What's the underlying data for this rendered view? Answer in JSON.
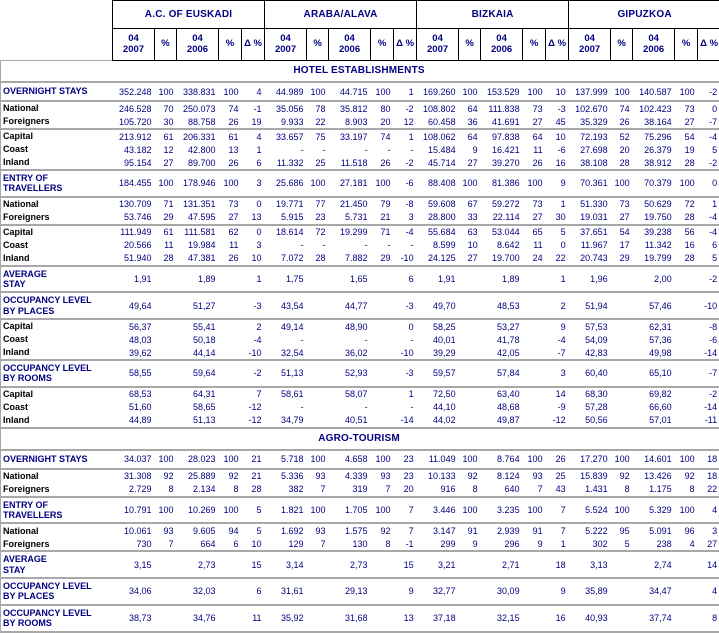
{
  "chart_data": {
    "type": "table",
    "column_groups": [
      "A.C. OF EUSKADI",
      "ARABA/ALAVA",
      "BIZKAIA",
      "GIPUZKOA"
    ],
    "sub_columns": [
      "04\n2007",
      "%",
      "04\n2006",
      "%",
      "Δ %"
    ],
    "colors": {
      "navy_text": "#000080",
      "label_text": "#000000",
      "grid_line": "#a8a8a8",
      "header_border": "#000000"
    },
    "sections": [
      {
        "title": "HOTEL ESTABLISHMENTS",
        "rows": [
          {
            "label": "OVERNIGHT STAYS",
            "kind": "section",
            "sep": true,
            "cells": [
              "352.248",
              "100",
              "338.831",
              "100",
              "4",
              "44.989",
              "100",
              "44.715",
              "100",
              "1",
              "169.260",
              "100",
              "153.529",
              "100",
              "10",
              "137.999",
              "100",
              "140.587",
              "100",
              "-2"
            ]
          },
          {
            "label": "National",
            "kind": "item",
            "sep": false,
            "cells": [
              "246.528",
              "70",
              "250.073",
              "74",
              "-1",
              "35.056",
              "78",
              "35.812",
              "80",
              "-2",
              "108.802",
              "64",
              "111.838",
              "73",
              "-3",
              "102.670",
              "74",
              "102.423",
              "73",
              "0"
            ]
          },
          {
            "label": "Foreigners",
            "kind": "item",
            "sep": true,
            "cells": [
              "105.720",
              "30",
              "88.758",
              "26",
              "19",
              "9.933",
              "22",
              "8.903",
              "20",
              "12",
              "60.458",
              "36",
              "41.691",
              "27",
              "45",
              "35.329",
              "26",
              "38.164",
              "27",
              "-7"
            ]
          },
          {
            "label": "Capital",
            "kind": "item",
            "sep": false,
            "cells": [
              "213.912",
              "61",
              "206.331",
              "61",
              "4",
              "33.657",
              "75",
              "33.197",
              "74",
              "1",
              "108.062",
              "64",
              "97.838",
              "64",
              "10",
              "72.193",
              "52",
              "75.296",
              "54",
              "-4"
            ]
          },
          {
            "label": "Coast",
            "kind": "item",
            "sep": false,
            "cells": [
              "43.182",
              "12",
              "42.800",
              "13",
              "1",
              "-",
              "-",
              "-",
              "-",
              "-",
              "15.484",
              "9",
              "16.421",
              "11",
              "-6",
              "27.698",
              "20",
              "26.379",
              "19",
              "5"
            ]
          },
          {
            "label": "Inland",
            "kind": "item",
            "sep": true,
            "cells": [
              "95.154",
              "27",
              "89.700",
              "26",
              "6",
              "11.332",
              "25",
              "11.518",
              "26",
              "-2",
              "45.714",
              "27",
              "39.270",
              "26",
              "16",
              "38.108",
              "28",
              "38.912",
              "28",
              "-2"
            ]
          },
          {
            "label": "ENTRY OF\nTRAVELLERS",
            "kind": "section",
            "sep": true,
            "cells": [
              "184.455",
              "100",
              "178.946",
              "100",
              "3",
              "25.686",
              "100",
              "27.181",
              "100",
              "-6",
              "88.408",
              "100",
              "81.386",
              "100",
              "9",
              "70.361",
              "100",
              "70.379",
              "100",
              "0"
            ]
          },
          {
            "label": "National",
            "kind": "item",
            "sep": false,
            "cells": [
              "130.709",
              "71",
              "131.351",
              "73",
              "0",
              "19.771",
              "77",
              "21.450",
              "79",
              "-8",
              "59.608",
              "67",
              "59.272",
              "73",
              "1",
              "51.330",
              "73",
              "50.629",
              "72",
              "1"
            ]
          },
          {
            "label": "Foreigners",
            "kind": "item",
            "sep": true,
            "cells": [
              "53.746",
              "29",
              "47.595",
              "27",
              "13",
              "5.915",
              "23",
              "5.731",
              "21",
              "3",
              "28.800",
              "33",
              "22.114",
              "27",
              "30",
              "19.031",
              "27",
              "19.750",
              "28",
              "-4"
            ]
          },
          {
            "label": "Capital",
            "kind": "item",
            "sep": false,
            "cells": [
              "111.949",
              "61",
              "111.581",
              "62",
              "0",
              "18.614",
              "72",
              "19.299",
              "71",
              "-4",
              "55.684",
              "63",
              "53.044",
              "65",
              "5",
              "37.651",
              "54",
              "39.238",
              "56",
              "-4"
            ]
          },
          {
            "label": "Coast",
            "kind": "item",
            "sep": false,
            "cells": [
              "20.566",
              "11",
              "19.984",
              "11",
              "3",
              "-",
              "-",
              "-",
              "-",
              "-",
              "8.599",
              "10",
              "8.642",
              "11",
              "0",
              "11.967",
              "17",
              "11.342",
              "16",
              "6"
            ]
          },
          {
            "label": "Inland",
            "kind": "item",
            "sep": true,
            "cells": [
              "51.940",
              "28",
              "47.381",
              "26",
              "10",
              "7.072",
              "28",
              "7.882",
              "29",
              "-10",
              "24.125",
              "27",
              "19.700",
              "24",
              "22",
              "20.743",
              "29",
              "19.799",
              "28",
              "5"
            ]
          },
          {
            "label": "AVERAGE\nSTAY",
            "kind": "section",
            "sep": true,
            "cells": [
              "1,91",
              "",
              "1,89",
              "",
              "1",
              "1,75",
              "",
              "1,65",
              "",
              "6",
              "1,91",
              "",
              "1,89",
              "",
              "1",
              "1,96",
              "",
              "2,00",
              "",
              "-2"
            ]
          },
          {
            "label": "OCCUPANCY LEVEL\nBY PLACES",
            "kind": "section",
            "sep": true,
            "cells": [
              "49,64",
              "",
              "51,27",
              "",
              "-3",
              "43,54",
              "",
              "44,77",
              "",
              "-3",
              "49,70",
              "",
              "48,53",
              "",
              "2",
              "51,94",
              "",
              "57,46",
              "",
              "-10"
            ]
          },
          {
            "label": "Capital",
            "kind": "item",
            "sep": false,
            "cells": [
              "56,37",
              "",
              "55,41",
              "",
              "2",
              "49,14",
              "",
              "48,90",
              "",
              "0",
              "58,25",
              "",
              "53,27",
              "",
              "9",
              "57,53",
              "",
              "62,31",
              "",
              "-8"
            ]
          },
          {
            "label": "Coast",
            "kind": "item",
            "sep": false,
            "cells": [
              "48,03",
              "",
              "50,18",
              "",
              "-4",
              "-",
              "",
              "-",
              "",
              "-",
              "40,01",
              "",
              "41,78",
              "",
              "-4",
              "54,09",
              "",
              "57,36",
              "",
              "-6"
            ]
          },
          {
            "label": "Inland",
            "kind": "item",
            "sep": true,
            "cells": [
              "39,62",
              "",
              "44,14",
              "",
              "-10",
              "32,54",
              "",
              "36,02",
              "",
              "-10",
              "39,29",
              "",
              "42,05",
              "",
              "-7",
              "42,83",
              "",
              "49,98",
              "",
              "-14"
            ]
          },
          {
            "label": "OCCUPANCY LEVEL\nBY ROOMS",
            "kind": "section",
            "sep": true,
            "cells": [
              "58,55",
              "",
              "59,64",
              "",
              "-2",
              "51,13",
              "",
              "52,93",
              "",
              "-3",
              "59,57",
              "",
              "57,84",
              "",
              "3",
              "60,40",
              "",
              "65,10",
              "",
              "-7"
            ]
          },
          {
            "label": "Capital",
            "kind": "item",
            "sep": false,
            "cells": [
              "68,53",
              "",
              "64,31",
              "",
              "7",
              "58,61",
              "",
              "58,07",
              "",
              "1",
              "72,50",
              "",
              "63,40",
              "",
              "14",
              "68,30",
              "",
              "69,82",
              "",
              "-2"
            ]
          },
          {
            "label": "Coast",
            "kind": "item",
            "sep": false,
            "cells": [
              "51,60",
              "",
              "58,65",
              "",
              "-12",
              "-",
              "",
              "-",
              "",
              "-",
              "44,10",
              "",
              "48,68",
              "",
              "-9",
              "57,28",
              "",
              "66,60",
              "",
              "-14"
            ]
          },
          {
            "label": "Inland",
            "kind": "item",
            "sep": true,
            "cells": [
              "44,89",
              "",
              "51,13",
              "",
              "-12",
              "34,79",
              "",
              "40,51",
              "",
              "-14",
              "44,02",
              "",
              "49,87",
              "",
              "-12",
              "50,56",
              "",
              "57,01",
              "",
              "-11"
            ]
          }
        ]
      },
      {
        "title": "AGRO-TOURISM",
        "rows": [
          {
            "label": "OVERNIGHT STAYS",
            "kind": "section",
            "sep": true,
            "cells": [
              "34.037",
              "100",
              "28.023",
              "100",
              "21",
              "5.718",
              "100",
              "4.658",
              "100",
              "23",
              "11.049",
              "100",
              "8.764",
              "100",
              "26",
              "17.270",
              "100",
              "14.601",
              "100",
              "18"
            ]
          },
          {
            "label": "National",
            "kind": "item",
            "sep": false,
            "cells": [
              "31.308",
              "92",
              "25.889",
              "92",
              "21",
              "5.336",
              "93",
              "4.339",
              "93",
              "23",
              "10.133",
              "92",
              "8.124",
              "93",
              "25",
              "15.839",
              "92",
              "13.426",
              "92",
              "18"
            ]
          },
          {
            "label": "Foreigners",
            "kind": "item",
            "sep": true,
            "cells": [
              "2.729",
              "8",
              "2.134",
              "8",
              "28",
              "382",
              "7",
              "319",
              "7",
              "20",
              "916",
              "8",
              "640",
              "7",
              "43",
              "1.431",
              "8",
              "1.175",
              "8",
              "22"
            ]
          },
          {
            "label": "ENTRY OF\nTRAVELLERS",
            "kind": "section",
            "sep": true,
            "cells": [
              "10.791",
              "100",
              "10.269",
              "100",
              "5",
              "1.821",
              "100",
              "1.705",
              "100",
              "7",
              "3.446",
              "100",
              "3.235",
              "100",
              "7",
              "5.524",
              "100",
              "5.329",
              "100",
              "4"
            ]
          },
          {
            "label": "National",
            "kind": "item",
            "sep": false,
            "cells": [
              "10.061",
              "93",
              "9.605",
              "94",
              "5",
              "1.692",
              "93",
              "1.575",
              "92",
              "7",
              "3.147",
              "91",
              "2.939",
              "91",
              "7",
              "5.222",
              "95",
              "5.091",
              "96",
              "3"
            ]
          },
          {
            "label": "Foreigners",
            "kind": "item",
            "sep": true,
            "cells": [
              "730",
              "7",
              "664",
              "6",
              "10",
              "129",
              "7",
              "130",
              "8",
              "-1",
              "299",
              "9",
              "296",
              "9",
              "1",
              "302",
              "5",
              "238",
              "4",
              "27"
            ]
          },
          {
            "label": "AVERAGE\nSTAY",
            "kind": "section",
            "sep": true,
            "cells": [
              "3,15",
              "",
              "2,73",
              "",
              "15",
              "3,14",
              "",
              "2,73",
              "",
              "15",
              "3,21",
              "",
              "2,71",
              "",
              "18",
              "3,13",
              "",
              "2,74",
              "",
              "14"
            ]
          },
          {
            "label": "OCCUPANCY LEVEL\nBY PLACES",
            "kind": "section",
            "sep": true,
            "cells": [
              "34,06",
              "",
              "32,03",
              "",
              "6",
              "31,61",
              "",
              "29,13",
              "",
              "9",
              "32,77",
              "",
              "30,09",
              "",
              "9",
              "35,89",
              "",
              "34,47",
              "",
              "4"
            ]
          },
          {
            "label": "OCCUPANCY LEVEL\nBY ROOMS",
            "kind": "section",
            "sep": true,
            "cells": [
              "38,73",
              "",
              "34,76",
              "",
              "11",
              "35,92",
              "",
              "31,68",
              "",
              "13",
              "37,18",
              "",
              "32,15",
              "",
              "16",
              "40,93",
              "",
              "37,74",
              "",
              "8"
            ]
          }
        ]
      }
    ]
  }
}
